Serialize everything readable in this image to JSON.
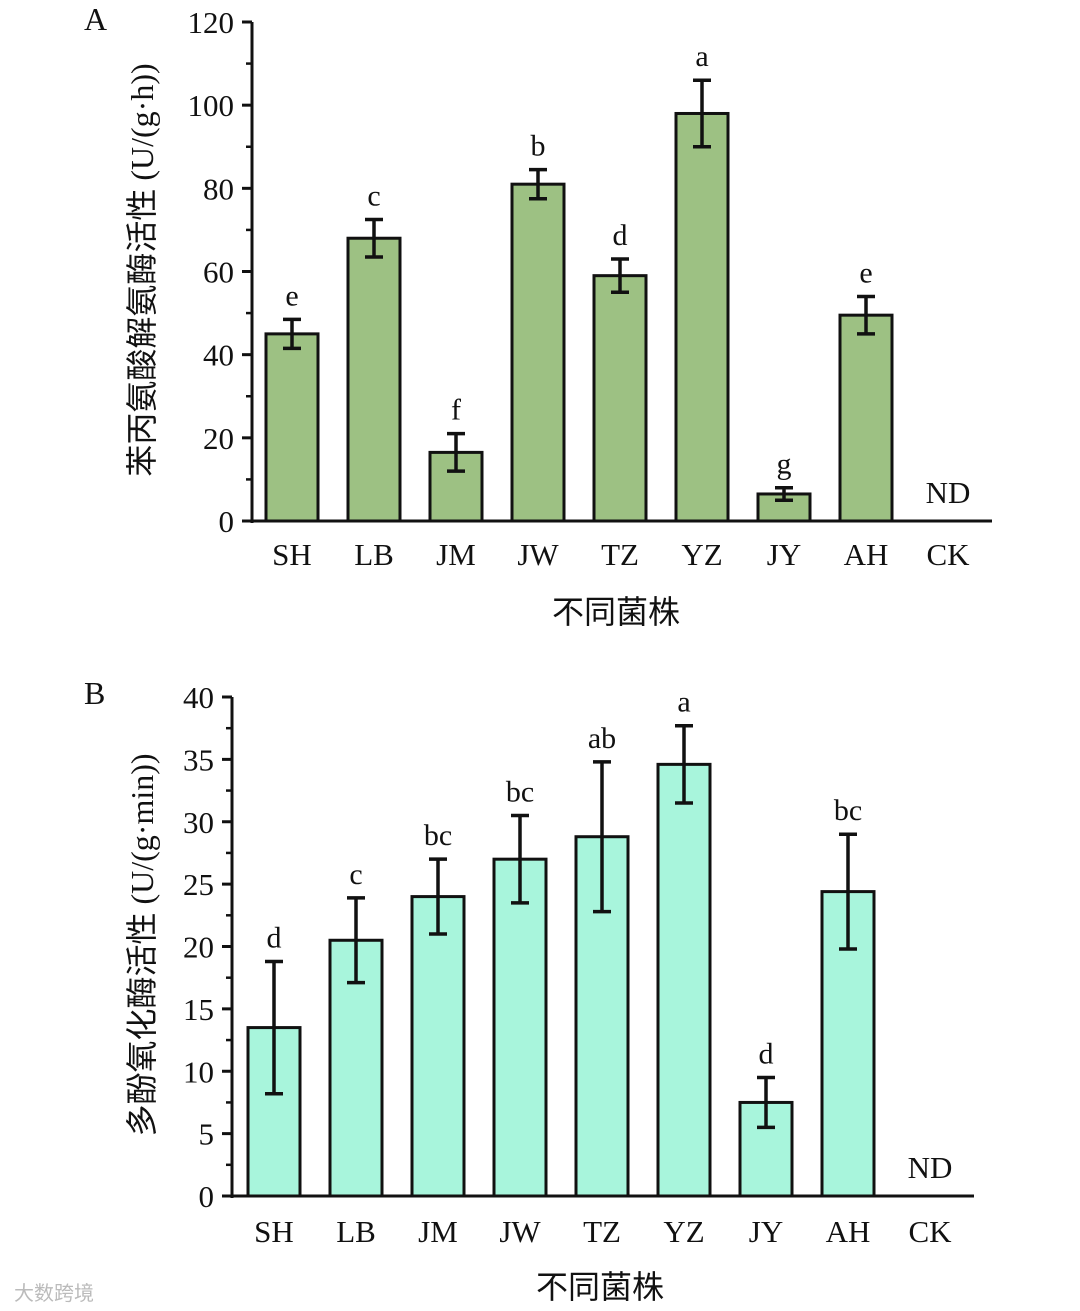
{
  "chart_data": [
    {
      "type": "bar",
      "panel_label": "A",
      "ylabel": "苯丙氨酸解氨酶活性 (U/(g·h))",
      "xlabel": "不同菌株",
      "categories": [
        "SH",
        "LB",
        "JM",
        "JW",
        "TZ",
        "YZ",
        "JY",
        "AH",
        "CK"
      ],
      "values": [
        45,
        68,
        16.5,
        81,
        59,
        98,
        6.5,
        49.5,
        null
      ],
      "errors": [
        3.5,
        4.5,
        4.5,
        3.5,
        4,
        8,
        1.5,
        4.5,
        null
      ],
      "significance": [
        "e",
        "c",
        "f",
        "b",
        "d",
        "a",
        "g",
        "e",
        ""
      ],
      "nd_label": "ND",
      "ylim": [
        0,
        120
      ],
      "yticks": [
        "0",
        "20",
        "40",
        "60",
        "80",
        "100",
        "120"
      ],
      "bar_color": "#9dc183"
    },
    {
      "type": "bar",
      "panel_label": "B",
      "ylabel": "多酚氧化酶活性 (U/(g·min))",
      "xlabel": "不同菌株",
      "categories": [
        "SH",
        "LB",
        "JM",
        "JW",
        "TZ",
        "YZ",
        "JY",
        "AH",
        "CK"
      ],
      "values": [
        13.5,
        20.5,
        24,
        27,
        28.8,
        34.6,
        7.5,
        24.4,
        null
      ],
      "errors": [
        5.3,
        3.4,
        3,
        3.5,
        6,
        3.1,
        2,
        4.6,
        null
      ],
      "significance": [
        "d",
        "c",
        "bc",
        "bc",
        "ab",
        "a",
        "d",
        "bc",
        ""
      ],
      "nd_label": "ND",
      "ylim": [
        0,
        40
      ],
      "yticks": [
        "0",
        "5",
        "10",
        "15",
        "20",
        "25",
        "30",
        "35",
        "40"
      ],
      "bar_color": "#a8f5dc"
    }
  ],
  "watermark": "大数跨境"
}
